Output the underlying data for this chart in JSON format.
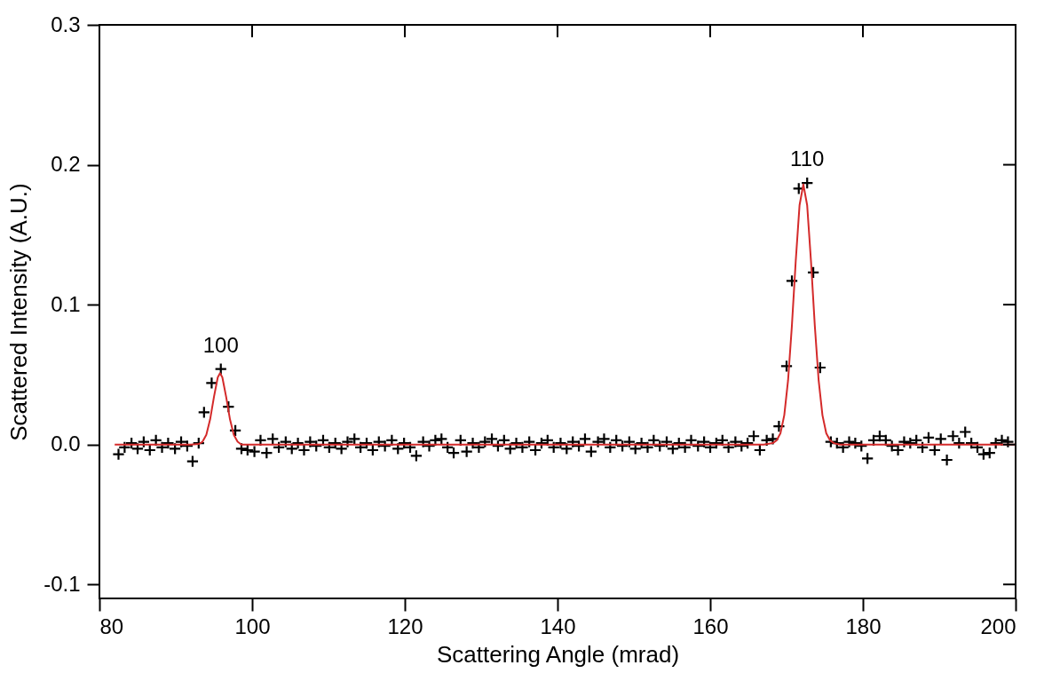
{
  "chart_data": {
    "type": "scatter",
    "xlabel": "Scattering Angle (mrad)",
    "ylabel": "Scattered Intensity (A.U.)",
    "xlim": [
      80,
      200
    ],
    "xticks": [
      80,
      100,
      120,
      140,
      160,
      180,
      200
    ],
    "ylim": [
      -0.11,
      0.3
    ],
    "yticks": [
      {
        "value": -0.1,
        "label": "-0.1"
      },
      {
        "value": 0,
        "label": "0.0"
      },
      {
        "value": 0.1,
        "label": "0.1"
      },
      {
        "value": 0.2,
        "label": "0.2"
      },
      {
        "value": 0.3,
        "label": "0.3"
      }
    ],
    "grid": false,
    "annotations": [
      {
        "text": "100",
        "x": 95.9,
        "y": 0.054
      },
      {
        "text": "110",
        "x": 172.7,
        "y": 0.187
      }
    ],
    "series": [
      {
        "marker": "cross",
        "color": "#000000",
        "x": [
          82.5,
          83.3,
          84.2,
          85.0,
          85.8,
          86.6,
          87.4,
          88.2,
          89.0,
          89.9,
          90.7,
          91.5,
          92.2,
          93.0,
          93.7,
          94.7,
          95.9,
          96.9,
          97.8,
          98.6,
          99.4,
          100.3,
          101.1,
          101.9,
          102.7,
          103.5,
          104.4,
          105.2,
          106.0,
          106.8,
          107.6,
          108.4,
          109.3,
          110.1,
          110.9,
          111.7,
          112.5,
          113.4,
          114.2,
          115.0,
          115.8,
          116.6,
          117.4,
          118.3,
          119.1,
          119.9,
          120.7,
          121.5,
          122.4,
          123.2,
          124.0,
          124.8,
          125.6,
          126.4,
          127.3,
          128.1,
          128.9,
          129.7,
          130.5,
          131.4,
          132.2,
          133.0,
          133.8,
          134.6,
          135.4,
          136.3,
          137.1,
          137.9,
          138.7,
          139.5,
          140.4,
          141.2,
          142.0,
          142.8,
          143.6,
          144.4,
          145.3,
          146.1,
          146.9,
          147.7,
          148.5,
          149.4,
          150.2,
          151.0,
          151.8,
          152.6,
          153.4,
          154.3,
          155.1,
          155.9,
          156.7,
          157.5,
          158.4,
          159.2,
          160.0,
          160.8,
          161.6,
          162.4,
          163.3,
          164.1,
          164.9,
          165.7,
          166.5,
          167.4,
          168.2,
          169.0,
          170.0,
          170.7,
          171.6,
          172.7,
          173.5,
          174.4,
          175.8,
          176.6,
          177.4,
          178.2,
          179.0,
          179.8,
          180.6,
          181.4,
          182.2,
          183.0,
          183.8,
          184.6,
          185.4,
          186.2,
          187.0,
          187.8,
          188.6,
          189.4,
          190.2,
          191.0,
          191.8,
          192.6,
          193.4,
          194.2,
          195.0,
          195.8,
          196.6,
          197.4,
          198.2,
          199.0
        ],
        "values": [
          -0.007,
          -0.002,
          0.001,
          -0.003,
          0.002,
          -0.004,
          0.003,
          -0.002,
          0.001,
          -0.003,
          0.002,
          -0.001,
          -0.012,
          0.001,
          0.023,
          0.044,
          0.054,
          0.027,
          0.01,
          -0.003,
          -0.004,
          -0.005,
          0.003,
          -0.006,
          0.004,
          -0.002,
          0.002,
          -0.003,
          0.001,
          -0.004,
          0.002,
          -0.001,
          0.003,
          -0.002,
          0.001,
          -0.003,
          0.002,
          0.004,
          -0.002,
          0.001,
          -0.004,
          0.002,
          -0.001,
          0.003,
          -0.003,
          0.001,
          -0.002,
          -0.008,
          0.002,
          -0.001,
          0.003,
          0.004,
          -0.002,
          -0.006,
          0.003,
          -0.005,
          0.001,
          -0.002,
          0.002,
          0.004,
          -0.001,
          0.003,
          -0.003,
          0.001,
          -0.002,
          0.002,
          -0.004,
          0.001,
          0.003,
          -0.002,
          0.001,
          -0.003,
          0.002,
          -0.001,
          0.004,
          -0.005,
          0.002,
          0.004,
          -0.002,
          0.003,
          -0.001,
          0.002,
          -0.003,
          0.001,
          -0.002,
          0.003,
          -0.001,
          0.002,
          -0.003,
          0.001,
          -0.002,
          0.003,
          -0.001,
          0.002,
          -0.002,
          0.001,
          0.003,
          -0.002,
          0.002,
          -0.001,
          0.001,
          0.006,
          -0.004,
          0.003,
          0.004,
          0.013,
          0.056,
          0.117,
          0.183,
          0.187,
          0.123,
          0.055,
          0.002,
          0.001,
          -0.002,
          0.002,
          0.001,
          -0.001,
          -0.01,
          0.003,
          0.006,
          0.003,
          -0.001,
          -0.004,
          0.002,
          0.001,
          0.003,
          -0.002,
          0.005,
          -0.004,
          0.004,
          -0.011,
          0.006,
          0.001,
          0.009,
          0.001,
          -0.002,
          -0.007,
          -0.006,
          0.001,
          0.003,
          0.002
        ]
      },
      {
        "type": "line",
        "color": "#d42a2a",
        "line_style": "solid",
        "x": [
          82,
          92,
          93,
          93.5,
          94,
          94.5,
          95,
          95.5,
          95.8,
          96.1,
          96.6,
          97.1,
          97.6,
          98.1,
          98.6,
          100,
          167,
          168.2,
          168.7,
          169.2,
          169.7,
          170.2,
          170.7,
          171.2,
          171.7,
          172.2,
          172.7,
          173.2,
          173.7,
          174.2,
          174.7,
          175.2,
          175.7,
          176.2,
          177,
          200
        ],
        "values": [
          0,
          0,
          0.0004,
          0.002,
          0.007,
          0.018,
          0.034,
          0.048,
          0.051,
          0.048,
          0.034,
          0.018,
          0.007,
          0.002,
          0,
          0,
          0,
          0.001,
          0.003,
          0.008,
          0.021,
          0.046,
          0.085,
          0.131,
          0.171,
          0.186,
          0.171,
          0.131,
          0.085,
          0.046,
          0.021,
          0.008,
          0.003,
          0.001,
          0,
          0
        ]
      }
    ]
  }
}
